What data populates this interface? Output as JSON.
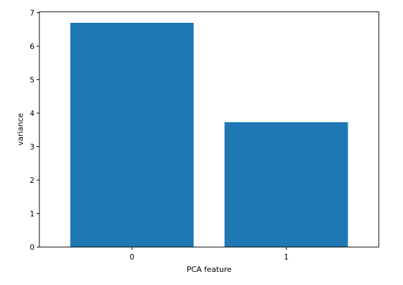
{
  "chart_data": {
    "type": "bar",
    "categories": [
      "0",
      "1"
    ],
    "values": [
      6.7,
      3.73
    ],
    "title": "",
    "xlabel": "PCA feature",
    "ylabel": "variance",
    "ylim": [
      0,
      7.03
    ],
    "yticks": [
      0,
      1,
      2,
      3,
      4,
      5,
      6,
      7
    ],
    "grid": false,
    "bar_color": "#1f77b4"
  }
}
